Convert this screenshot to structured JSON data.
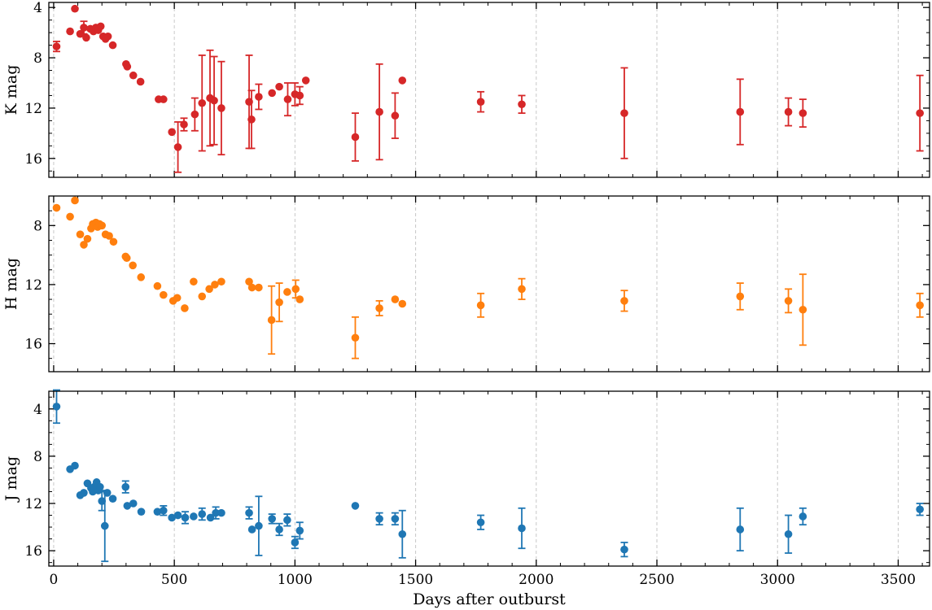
{
  "chart_data": {
    "type": "scatter",
    "x_axis": {
      "label": "Days after outburst",
      "range": [
        -20,
        3630
      ],
      "ticks": [
        0,
        500,
        1000,
        1500,
        2000,
        2500,
        3000,
        3500
      ],
      "tick_labels": [
        "0",
        "500",
        "1000",
        "1500",
        "2000",
        "2500",
        "3000",
        "3500"
      ],
      "grid": true
    },
    "panels": [
      {
        "name": "K",
        "ylabel": "K mag",
        "ylim": [
          3.6,
          17.5
        ],
        "y_inverted": true,
        "yticks": [
          4,
          8,
          12,
          16
        ],
        "ytick_labels": [
          "4",
          "8",
          "12",
          "16"
        ],
        "color": "#d62728",
        "points": [
          [
            12,
            7.1,
            0.4
          ],
          [
            68,
            5.9,
            0
          ],
          [
            88,
            4.1,
            0
          ],
          [
            110,
            6.1,
            0
          ],
          [
            125,
            5.6,
            0.5
          ],
          [
            135,
            6.4,
            0
          ],
          [
            152,
            5.7,
            0
          ],
          [
            165,
            5.9,
            0
          ],
          [
            175,
            5.6,
            0
          ],
          [
            185,
            5.8,
            0
          ],
          [
            195,
            5.5,
            0
          ],
          [
            205,
            6.3,
            0
          ],
          [
            215,
            6.5,
            0
          ],
          [
            225,
            6.3,
            0
          ],
          [
            245,
            7.0,
            0
          ],
          [
            300,
            8.5,
            0
          ],
          [
            305,
            8.7,
            0
          ],
          [
            330,
            9.4,
            0
          ],
          [
            360,
            9.9,
            0
          ],
          [
            435,
            11.3,
            0
          ],
          [
            455,
            11.3,
            0
          ],
          [
            490,
            13.9,
            0
          ],
          [
            515,
            15.1,
            2.0
          ],
          [
            540,
            13.3,
            0.5
          ],
          [
            585,
            12.5,
            1.3
          ],
          [
            615,
            11.6,
            3.8
          ],
          [
            648,
            11.2,
            3.8
          ],
          [
            665,
            11.4,
            3.5
          ],
          [
            695,
            12.0,
            3.7
          ],
          [
            810,
            11.5,
            3.7
          ],
          [
            820,
            12.9,
            2.3
          ],
          [
            850,
            11.1,
            1.0
          ],
          [
            905,
            10.8,
            0
          ],
          [
            935,
            10.3,
            0
          ],
          [
            970,
            11.3,
            1.3
          ],
          [
            1000,
            10.9,
            0.9
          ],
          [
            1020,
            11.0,
            0.7
          ],
          [
            1045,
            9.8,
            0
          ],
          [
            1250,
            14.3,
            1.9
          ],
          [
            1350,
            12.3,
            3.8
          ],
          [
            1415,
            12.6,
            1.8
          ],
          [
            1445,
            9.8,
            0
          ],
          [
            1770,
            11.5,
            0.8
          ],
          [
            1940,
            11.7,
            0.7
          ],
          [
            2365,
            12.4,
            3.6
          ],
          [
            2845,
            12.3,
            2.6
          ],
          [
            3045,
            12.3,
            1.1
          ],
          [
            3105,
            12.4,
            1.1
          ],
          [
            3590,
            12.4,
            3.0
          ]
        ]
      },
      {
        "name": "H",
        "ylabel": "H mag",
        "ylim": [
          6.0,
          17.9
        ],
        "y_inverted": true,
        "yticks": [
          8,
          12,
          16
        ],
        "ytick_labels": [
          "8",
          "12",
          "16"
        ],
        "color": "#ff7f0e",
        "points": [
          [
            12,
            6.8,
            0
          ],
          [
            68,
            7.4,
            0
          ],
          [
            88,
            6.3,
            0
          ],
          [
            110,
            8.6,
            0
          ],
          [
            125,
            9.3,
            0
          ],
          [
            140,
            8.9,
            0
          ],
          [
            155,
            8.2,
            0
          ],
          [
            162,
            7.9,
            0
          ],
          [
            168,
            8.0,
            0
          ],
          [
            175,
            7.8,
            0
          ],
          [
            182,
            8.1,
            0
          ],
          [
            190,
            7.9,
            0
          ],
          [
            200,
            8.0,
            0
          ],
          [
            215,
            8.6,
            0
          ],
          [
            230,
            8.7,
            0
          ],
          [
            248,
            9.1,
            0
          ],
          [
            298,
            10.1,
            0
          ],
          [
            303,
            10.2,
            0
          ],
          [
            328,
            10.7,
            0
          ],
          [
            362,
            11.5,
            0
          ],
          [
            430,
            12.1,
            0
          ],
          [
            455,
            12.7,
            0
          ],
          [
            495,
            13.1,
            0
          ],
          [
            512,
            12.9,
            0
          ],
          [
            543,
            13.6,
            0
          ],
          [
            580,
            11.8,
            0
          ],
          [
            615,
            12.8,
            0
          ],
          [
            645,
            12.3,
            0
          ],
          [
            668,
            12.0,
            0
          ],
          [
            695,
            11.8,
            0
          ],
          [
            810,
            11.8,
            0
          ],
          [
            822,
            12.2,
            0
          ],
          [
            850,
            12.2,
            0
          ],
          [
            903,
            14.4,
            2.3
          ],
          [
            935,
            13.2,
            1.3
          ],
          [
            968,
            12.5,
            0
          ],
          [
            1003,
            12.3,
            0.6
          ],
          [
            1020,
            13.0,
            0
          ],
          [
            1250,
            15.6,
            1.4
          ],
          [
            1350,
            13.6,
            0.5
          ],
          [
            1415,
            13.0,
            0
          ],
          [
            1445,
            13.3,
            0
          ],
          [
            1770,
            13.4,
            0.8
          ],
          [
            1940,
            12.3,
            0.7
          ],
          [
            2365,
            13.1,
            0.7
          ],
          [
            2845,
            12.8,
            0.9
          ],
          [
            3045,
            13.1,
            0.8
          ],
          [
            3105,
            13.7,
            2.4
          ],
          [
            3590,
            13.4,
            0.8
          ]
        ]
      },
      {
        "name": "J",
        "ylabel": "J mag",
        "ylim": [
          2.5,
          17.3
        ],
        "y_inverted": true,
        "yticks": [
          4,
          8,
          12,
          16
        ],
        "ytick_labels": [
          "4",
          "8",
          "12",
          "16"
        ],
        "color": "#1f77b4",
        "points": [
          [
            12,
            3.8,
            1.4
          ],
          [
            68,
            9.1,
            0
          ],
          [
            88,
            8.8,
            0
          ],
          [
            110,
            11.3,
            0
          ],
          [
            125,
            11.1,
            0
          ],
          [
            140,
            10.3,
            0
          ],
          [
            155,
            10.7,
            0
          ],
          [
            162,
            11.0,
            0
          ],
          [
            168,
            10.6,
            0
          ],
          [
            178,
            10.2,
            0
          ],
          [
            185,
            10.9,
            0
          ],
          [
            192,
            10.6,
            0
          ],
          [
            200,
            11.8,
            0.8
          ],
          [
            212,
            13.9,
            3.0
          ],
          [
            222,
            11.1,
            0
          ],
          [
            245,
            11.6,
            0
          ],
          [
            298,
            10.6,
            0.5
          ],
          [
            305,
            12.2,
            0
          ],
          [
            330,
            12.0,
            0
          ],
          [
            363,
            12.7,
            0
          ],
          [
            430,
            12.7,
            0
          ],
          [
            455,
            12.6,
            0.4
          ],
          [
            490,
            13.2,
            0
          ],
          [
            515,
            13.0,
            0
          ],
          [
            545,
            13.2,
            0.5
          ],
          [
            580,
            13.1,
            0
          ],
          [
            615,
            12.9,
            0.5
          ],
          [
            650,
            13.2,
            0
          ],
          [
            672,
            12.8,
            0.5
          ],
          [
            695,
            12.8,
            0
          ],
          [
            810,
            12.8,
            0.5
          ],
          [
            822,
            14.2,
            0
          ],
          [
            850,
            13.9,
            2.5
          ],
          [
            905,
            13.3,
            0.4
          ],
          [
            935,
            14.2,
            0.5
          ],
          [
            968,
            13.4,
            0.5
          ],
          [
            1000,
            15.3,
            0.5
          ],
          [
            1020,
            14.3,
            0.7
          ],
          [
            1250,
            12.2,
            0
          ],
          [
            1350,
            13.3,
            0.5
          ],
          [
            1415,
            13.3,
            0.5
          ],
          [
            1445,
            14.6,
            2.0
          ],
          [
            1770,
            13.6,
            0.6
          ],
          [
            1940,
            14.1,
            1.7
          ],
          [
            2365,
            15.9,
            0.6
          ],
          [
            2845,
            14.2,
            1.8
          ],
          [
            3045,
            14.6,
            1.6
          ],
          [
            3105,
            13.1,
            0.7
          ],
          [
            3590,
            12.5,
            0.5
          ]
        ]
      }
    ]
  }
}
